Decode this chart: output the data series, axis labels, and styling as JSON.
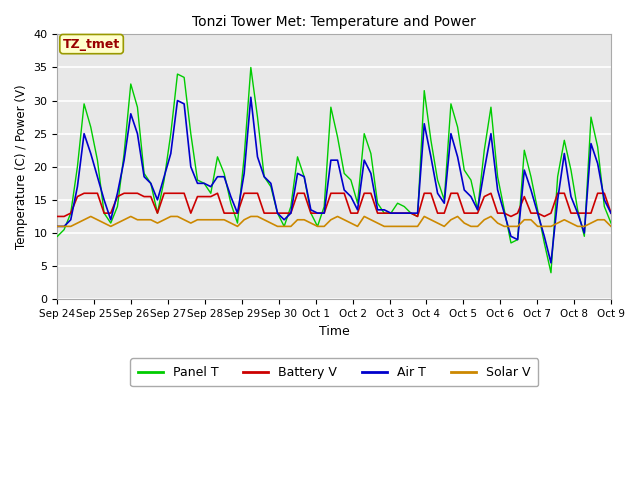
{
  "title": "Tonzi Tower Met: Temperature and Power",
  "xlabel": "Time",
  "ylabel": "Temperature (C) / Power (V)",
  "ylim": [
    0,
    40
  ],
  "yticks": [
    0,
    5,
    10,
    15,
    20,
    25,
    30,
    35,
    40
  ],
  "xtick_labels": [
    "Sep 24",
    "Sep 25",
    "Sep 26",
    "Sep 27",
    "Sep 28",
    "Sep 29",
    "Sep 30",
    "Oct 1",
    "Oct 2",
    "Oct 3",
    "Oct 4",
    "Oct 5",
    "Oct 6",
    "Oct 7",
    "Oct 8",
    "Oct 9"
  ],
  "annotation_text": "TZ_tmet",
  "annotation_color": "#990000",
  "annotation_bg": "#ffffcc",
  "bg_color": "#e8e8e8",
  "panel_t_color": "#00cc00",
  "battery_v_color": "#cc0000",
  "air_t_color": "#0000cc",
  "solar_v_color": "#cc8800",
  "legend_labels": [
    "Panel T",
    "Battery V",
    "Air T",
    "Solar V"
  ],
  "panel_t": [
    9.5,
    10.5,
    13.0,
    20.0,
    29.5,
    26.0,
    21.0,
    13.0,
    11.5,
    14.0,
    22.0,
    32.5,
    29.0,
    19.0,
    17.5,
    13.0,
    18.0,
    25.0,
    34.0,
    33.5,
    25.0,
    18.0,
    17.5,
    16.0,
    21.5,
    19.0,
    14.5,
    11.5,
    21.5,
    35.0,
    27.5,
    18.5,
    17.0,
    13.0,
    11.0,
    14.0,
    21.5,
    18.5,
    13.0,
    11.0,
    14.0,
    29.0,
    24.5,
    19.0,
    18.0,
    14.5,
    25.0,
    22.0,
    14.5,
    13.0,
    13.0,
    14.5,
    14.0,
    13.0,
    12.5,
    31.5,
    24.0,
    18.0,
    15.0,
    29.5,
    26.0,
    19.5,
    18.0,
    13.5,
    22.5,
    29.0,
    18.5,
    13.5,
    8.5,
    9.0,
    22.5,
    18.5,
    13.5,
    8.5,
    4.0,
    18.5,
    24.0,
    19.5,
    13.5,
    9.5,
    27.5,
    23.0,
    14.0,
    11.5
  ],
  "battery_v": [
    12.5,
    12.5,
    13.0,
    15.5,
    16.0,
    16.0,
    16.0,
    13.0,
    13.0,
    15.5,
    16.0,
    16.0,
    16.0,
    15.5,
    15.5,
    13.0,
    16.0,
    16.0,
    16.0,
    16.0,
    13.0,
    15.5,
    15.5,
    15.5,
    16.0,
    13.0,
    13.0,
    13.0,
    16.0,
    16.0,
    16.0,
    13.0,
    13.0,
    13.0,
    13.0,
    13.0,
    16.0,
    16.0,
    13.0,
    13.0,
    13.0,
    16.0,
    16.0,
    16.0,
    13.0,
    13.0,
    16.0,
    16.0,
    13.0,
    13.0,
    13.0,
    13.0,
    13.0,
    13.0,
    12.5,
    16.0,
    16.0,
    13.0,
    13.0,
    16.0,
    16.0,
    13.0,
    13.0,
    13.0,
    15.5,
    16.0,
    13.0,
    13.0,
    12.5,
    13.0,
    15.5,
    13.0,
    13.0,
    12.5,
    13.0,
    16.0,
    16.0,
    13.0,
    13.0,
    13.0,
    13.0,
    16.0,
    16.0,
    13.0
  ],
  "air_t": [
    11.0,
    11.0,
    12.0,
    17.0,
    25.0,
    22.0,
    18.5,
    15.0,
    12.0,
    16.0,
    21.0,
    28.0,
    25.0,
    18.5,
    17.5,
    15.0,
    18.5,
    22.0,
    30.0,
    29.5,
    20.0,
    17.5,
    17.5,
    17.0,
    18.5,
    18.5,
    15.5,
    13.0,
    19.0,
    30.5,
    21.5,
    18.5,
    17.5,
    13.0,
    12.0,
    13.0,
    19.0,
    18.5,
    13.5,
    13.0,
    13.0,
    21.0,
    21.0,
    16.5,
    15.5,
    13.5,
    21.0,
    19.0,
    13.5,
    13.5,
    13.0,
    13.0,
    13.0,
    13.0,
    13.0,
    26.5,
    21.5,
    16.0,
    14.5,
    25.0,
    21.5,
    16.5,
    15.5,
    13.5,
    19.5,
    25.0,
    16.5,
    13.0,
    9.5,
    9.0,
    19.5,
    16.5,
    13.0,
    9.5,
    5.5,
    15.0,
    22.0,
    15.5,
    13.0,
    10.0,
    23.5,
    20.5,
    15.0,
    13.0
  ],
  "solar_v": [
    11.0,
    11.0,
    11.0,
    11.5,
    12.0,
    12.5,
    12.0,
    11.5,
    11.0,
    11.5,
    12.0,
    12.5,
    12.0,
    12.0,
    12.0,
    11.5,
    12.0,
    12.5,
    12.5,
    12.0,
    11.5,
    12.0,
    12.0,
    12.0,
    12.0,
    12.0,
    11.5,
    11.0,
    12.0,
    12.5,
    12.5,
    12.0,
    11.5,
    11.0,
    11.0,
    11.0,
    12.0,
    12.0,
    11.5,
    11.0,
    11.0,
    12.0,
    12.5,
    12.0,
    11.5,
    11.0,
    12.5,
    12.0,
    11.5,
    11.0,
    11.0,
    11.0,
    11.0,
    11.0,
    11.0,
    12.5,
    12.0,
    11.5,
    11.0,
    12.0,
    12.5,
    11.5,
    11.0,
    11.0,
    12.0,
    12.5,
    11.5,
    11.0,
    11.0,
    11.0,
    12.0,
    12.0,
    11.0,
    11.0,
    11.0,
    11.5,
    12.0,
    11.5,
    11.0,
    11.0,
    11.5,
    12.0,
    12.0,
    11.0
  ]
}
